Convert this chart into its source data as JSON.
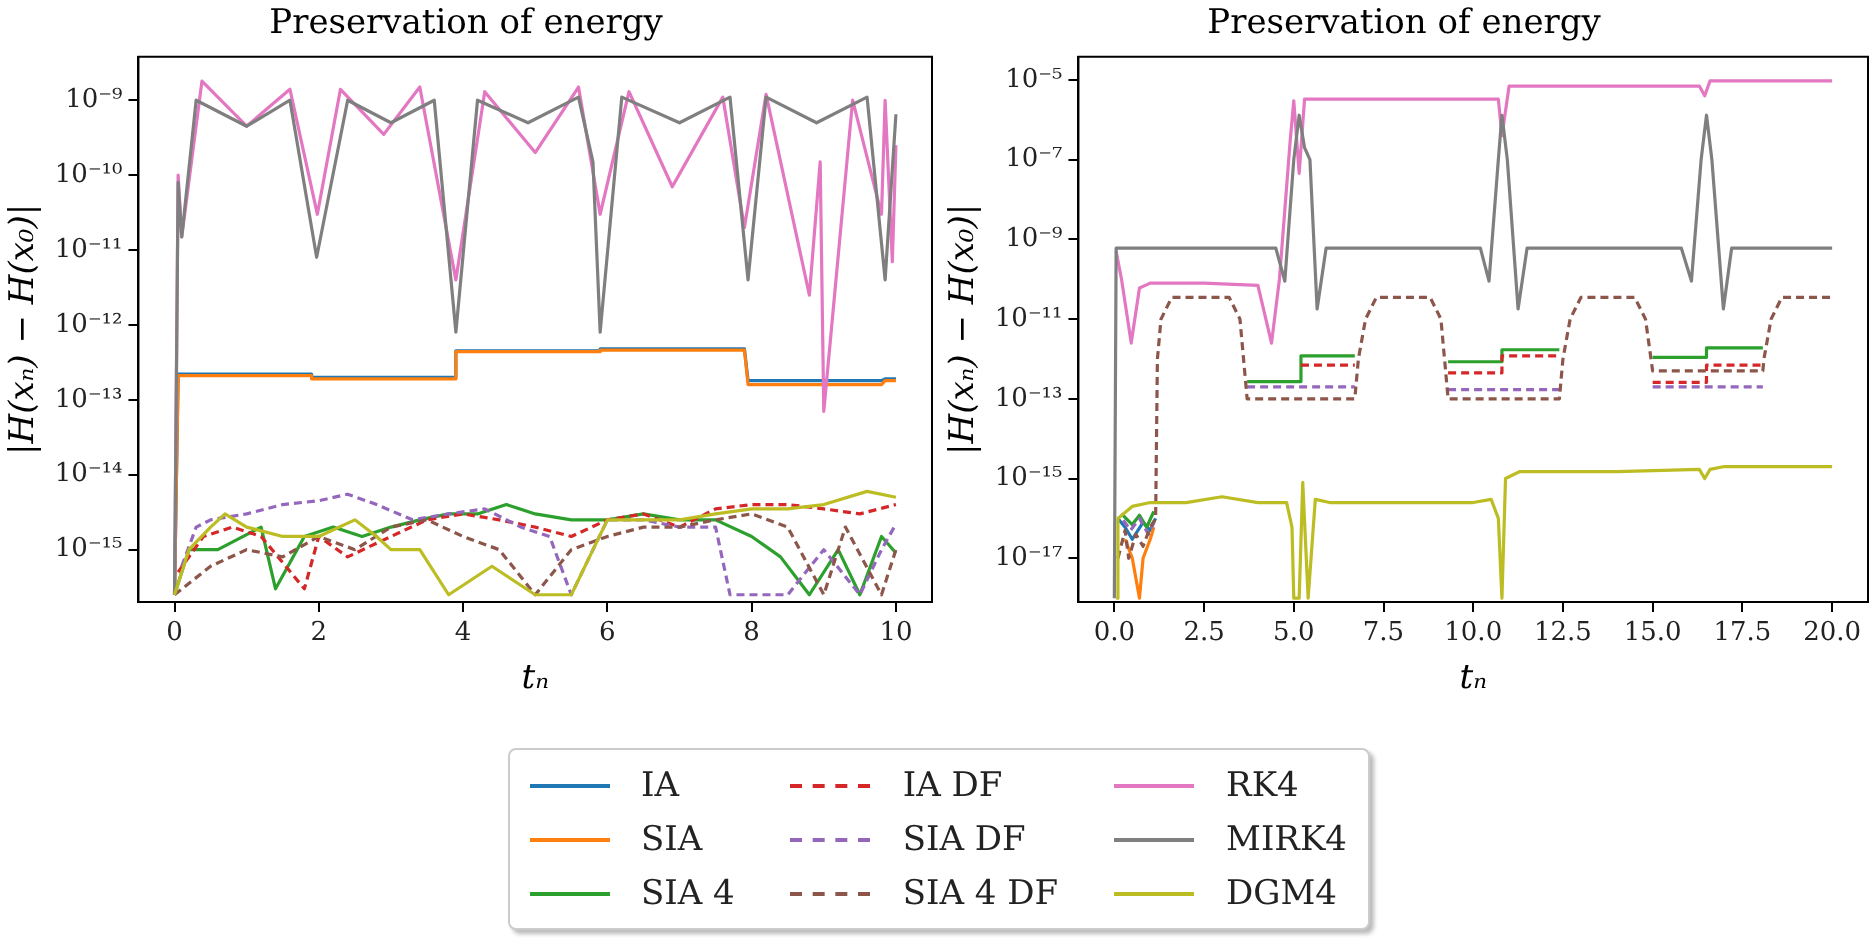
{
  "chart_data": [
    {
      "type": "line",
      "title": "Preservation of energy",
      "xlabel": "tₙ",
      "ylabel": "|H(xₙ) − H(x₀)|",
      "log": "y",
      "grid": false,
      "legend": "bottom",
      "xlim": [
        -0.5,
        10.5
      ],
      "xticks": [
        0,
        2,
        4,
        6,
        8,
        10
      ],
      "ylim": [
        2e-16,
        3.8e-09
      ],
      "yticks": [
        {
          "value": 1e-15,
          "label": "10⁻¹⁵"
        },
        {
          "value": 1e-14,
          "label": "10⁻¹⁴"
        },
        {
          "value": 1e-13,
          "label": "10⁻¹³"
        },
        {
          "value": 1e-12,
          "label": "10⁻¹²"
        },
        {
          "value": 1e-11,
          "label": "10⁻¹¹"
        },
        {
          "value": 1e-10,
          "label": "10⁻¹⁰"
        },
        {
          "value": 1e-09,
          "label": "10⁻⁹"
        }
      ],
      "series": [
        {
          "name": "IA",
          "color": "#1f77b4",
          "line_style": "solid",
          "x": [
            0,
            0.05,
            1.9,
            1.9,
            3.9,
            3.9,
            5.9,
            5.9,
            7.9,
            7.95,
            9.8,
            9.85,
            10
          ],
          "values": [
            2.5e-16,
            2.2e-13,
            2.2e-13,
            2e-13,
            2e-13,
            4.5e-13,
            4.5e-13,
            4.8e-13,
            4.8e-13,
            1.8e-13,
            1.8e-13,
            1.9e-13,
            1.9e-13
          ]
        },
        {
          "name": "SIA",
          "color": "#ff7f0e",
          "line_style": "solid",
          "x": [
            0,
            0.05,
            1.9,
            1.9,
            3.9,
            3.9,
            5.9,
            5.9,
            7.9,
            7.95,
            9.8,
            9.85,
            10
          ],
          "values": [
            2.5e-16,
            2.1e-13,
            2.1e-13,
            1.9e-13,
            1.9e-13,
            4.4e-13,
            4.4e-13,
            4.6e-13,
            4.6e-13,
            1.6e-13,
            1.6e-13,
            1.8e-13,
            1.8e-13
          ]
        },
        {
          "name": "SIA 4",
          "color": "#2ca02c",
          "line_style": "solid",
          "x": [
            0,
            0.2,
            0.6,
            1.2,
            1.4,
            1.8,
            2.2,
            2.6,
            3,
            3.4,
            3.8,
            4.2,
            4.6,
            5,
            5.5,
            6,
            6.5,
            7,
            7.5,
            8,
            8.4,
            8.8,
            9.2,
            9.5,
            9.8,
            10
          ],
          "values": [
            2.5e-16,
            1e-15,
            1e-15,
            2e-15,
            3e-16,
            1.5e-15,
            2e-15,
            1.5e-15,
            2e-15,
            2.5e-15,
            3e-15,
            3e-15,
            4e-15,
            3e-15,
            2.5e-15,
            2.5e-15,
            3e-15,
            2.5e-15,
            2.5e-15,
            1.5e-15,
            8e-16,
            2.5e-16,
            1e-15,
            2.5e-16,
            1.5e-15,
            9e-16
          ]
        },
        {
          "name": "IA DF",
          "color": "#d62728",
          "line_style": "dashed",
          "x": [
            0.05,
            0.4,
            0.8,
            1.2,
            1.8,
            2,
            2.4,
            3,
            3.5,
            4,
            4.5,
            5,
            5.5,
            6,
            6.5,
            7,
            7.5,
            8,
            8.5,
            9,
            9.5,
            10
          ],
          "values": [
            5e-16,
            1.5e-15,
            2e-15,
            1.5e-15,
            3e-16,
            1.5e-15,
            8e-16,
            1.5e-15,
            2.5e-15,
            3e-15,
            2.5e-15,
            2e-15,
            1.5e-15,
            2.5e-15,
            3e-15,
            2e-15,
            3.5e-15,
            4e-15,
            4e-15,
            3.5e-15,
            3e-15,
            4e-15
          ]
        },
        {
          "name": "SIA DF",
          "color": "#9467bd",
          "line_style": "dashed",
          "x": [
            0.1,
            0.3,
            0.5,
            1,
            1.5,
            2,
            2.4,
            2.8,
            3.3,
            3.8,
            4.3,
            4.8,
            5.2,
            5.5,
            6,
            6.5,
            7,
            7.5,
            7.7,
            8.5,
            9,
            9.5,
            9.8,
            10
          ],
          "values": [
            6e-16,
            2e-15,
            2.5e-15,
            3e-15,
            4e-15,
            4.5e-15,
            5.5e-15,
            4e-15,
            2.5e-15,
            3e-15,
            3.5e-15,
            2e-15,
            1.5e-15,
            2.5e-16,
            2.5e-15,
            2.5e-15,
            2e-15,
            2e-15,
            2.5e-16,
            2.5e-16,
            1e-15,
            2.5e-16,
            1e-15,
            2.2e-15
          ]
        },
        {
          "name": "SIA 4 DF",
          "color": "#8c564b",
          "line_style": "dashed",
          "x": [
            0,
            0.5,
            1,
            1.5,
            2,
            2.5,
            3,
            3.5,
            4,
            4.5,
            5,
            5.5,
            6,
            6.5,
            7,
            7.5,
            8,
            8.5,
            9,
            9.3,
            9.8,
            10
          ],
          "values": [
            2.5e-16,
            6e-16,
            1e-15,
            8e-16,
            1.5e-15,
            1e-15,
            2e-15,
            2.5e-15,
            1.5e-15,
            1e-15,
            2.5e-16,
            1e-15,
            1.5e-15,
            2e-15,
            2e-15,
            2.5e-15,
            3e-15,
            2e-15,
            2.5e-16,
            2e-15,
            2.5e-16,
            1e-15
          ]
        },
        {
          "name": "RK4",
          "color": "#e377c2",
          "line_style": "solid",
          "x": [
            0,
            0.05,
            0.1,
            0.38,
            1,
            1.6,
            1.98,
            2.3,
            2.9,
            3.4,
            3.9,
            4.3,
            5,
            5.6,
            5.9,
            6.3,
            6.9,
            7.6,
            7.9,
            8.2,
            8.8,
            8.95,
            9,
            9.4,
            9.8,
            9.85,
            9.95,
            10
          ],
          "values": [
            2.5e-16,
            1e-10,
            1.5e-11,
            1.8e-09,
            4.5e-10,
            1.4e-09,
            3e-11,
            1.4e-09,
            3.5e-10,
            1.5e-09,
            4e-12,
            1.3e-09,
            2e-10,
            1.5e-09,
            3e-11,
            1.3e-09,
            7e-11,
            1.1e-09,
            2e-11,
            1.2e-09,
            2.5e-12,
            1.5e-10,
            7e-14,
            1e-09,
            3e-11,
            1e-09,
            7e-12,
            2.5e-10
          ]
        },
        {
          "name": "MIRK4",
          "color": "#7f7f7f",
          "line_style": "solid",
          "x": [
            0,
            0.05,
            0.1,
            0.3,
            1,
            1.6,
            1.97,
            2.4,
            3,
            3.6,
            3.9,
            4.2,
            4.9,
            5.6,
            5.8,
            5.9,
            6.2,
            7,
            7.7,
            7.95,
            8.2,
            8.9,
            9.6,
            9.85,
            10
          ],
          "values": [
            2.5e-16,
            8e-11,
            1.5e-11,
            1e-09,
            4.5e-10,
            1e-09,
            8e-12,
            1e-09,
            5e-10,
            1e-09,
            8e-13,
            1e-09,
            5e-10,
            1.1e-09,
            1.5e-10,
            8e-13,
            1.1e-09,
            5e-10,
            1.1e-09,
            4e-12,
            1.1e-09,
            5e-10,
            1.1e-09,
            4e-12,
            6.5e-10
          ]
        },
        {
          "name": "DGM4",
          "color": "#bcbd22",
          "line_style": "solid",
          "x": [
            0,
            0.2,
            0.5,
            0.7,
            1,
            1.5,
            2,
            2.5,
            2.8,
            3,
            3.4,
            3.8,
            4.4,
            5,
            5.5,
            6,
            7,
            7.5,
            8,
            8.5,
            9,
            9.6,
            10
          ],
          "values": [
            2.5e-16,
            1e-15,
            2e-15,
            3e-15,
            2e-15,
            1.5e-15,
            1.5e-15,
            2.5e-15,
            1.5e-15,
            1e-15,
            1e-15,
            2.5e-16,
            6e-16,
            2.5e-16,
            2.5e-16,
            2.5e-15,
            2.5e-15,
            3e-15,
            3.5e-15,
            3.5e-15,
            4e-15,
            6e-15,
            5e-15
          ]
        }
      ]
    },
    {
      "type": "line",
      "title": "Preservation of energy",
      "xlabel": "tₙ",
      "ylabel": "|H(xₙ) − H(x₀)|",
      "log": "y",
      "grid": false,
      "xlim": [
        -1,
        21
      ],
      "xticks": [
        {
          "value": 0,
          "label": "0.0"
        },
        2.5,
        {
          "value": 5,
          "label": "5.0"
        },
        7.5,
        {
          "value": 10,
          "label": "10.0"
        },
        12.5,
        {
          "value": 15,
          "label": "15.0"
        },
        17.5,
        {
          "value": 20,
          "label": "20.0"
        }
      ],
      "ylim": [
        8e-19,
        3.8e-05
      ],
      "yticks": [
        {
          "value": 1e-17,
          "label": "10⁻¹⁷"
        },
        {
          "value": 1e-15,
          "label": "10⁻¹⁵"
        },
        {
          "value": 1e-13,
          "label": "10⁻¹³"
        },
        {
          "value": 1e-11,
          "label": "10⁻¹¹"
        },
        {
          "value": 1e-09,
          "label": "10⁻⁹"
        },
        {
          "value": 1e-07,
          "label": "10⁻⁷"
        },
        {
          "value": 1e-05,
          "label": "10⁻⁵"
        }
      ],
      "series": [
        {
          "color": "#1f77b4",
          "line_style": "solid",
          "x": [
            0.1,
            0.3,
            0.5,
            0.8,
            1,
            1.15
          ],
          "values": [
            1e-16,
            6e-17,
            3e-17,
            8e-17,
            5e-17,
            1e-16
          ]
        },
        {
          "color": "#ff7f0e",
          "line_style": "solid",
          "x": [
            0.3,
            0.5,
            0.7,
            0.8,
            1,
            1.1
          ],
          "values": [
            3e-17,
            1e-17,
            1e-18,
            1e-17,
            3e-17,
            6e-17
          ]
        },
        {
          "color": "#2ca02c",
          "line_style": "solid",
          "x": [
            0.2,
            0.5,
            0.7,
            0.9,
            1.1,
            2,
            3.7,
            5.2,
            5.2,
            6.7,
            8,
            9.3,
            10.8,
            10.8,
            12.4,
            13,
            15,
            16.5,
            16.5,
            18.07
          ],
          "values": [
            1.3e-16,
            7e-17,
            1.2e-16,
            6e-17,
            1.5e-16,
            null,
            2.7e-13,
            2.7e-13,
            1.2e-12,
            1.2e-12,
            null,
            8.5e-13,
            8.5e-13,
            1.7e-12,
            1.7e-12,
            null,
            1.1e-12,
            1.1e-12,
            1.9e-12,
            1.9e-12
          ]
        },
        {
          "color": "#d62728",
          "line_style": "dashed",
          "x": [
            5.2,
            6.7,
            8,
            9.3,
            10.8,
            10.8,
            12.4,
            13,
            15,
            16.5,
            16.5,
            18.07
          ],
          "values": [
            7e-13,
            7e-13,
            null,
            4.5e-13,
            4.5e-13,
            1.2e-12,
            1.2e-12,
            null,
            2.6e-13,
            2.6e-13,
            7e-13,
            7e-13
          ]
        },
        {
          "color": "#9467bd",
          "line_style": "dashed",
          "x": [
            0.25,
            0.45,
            0.7,
            0.95,
            1.1,
            2,
            3.7,
            6.7,
            8,
            9.3,
            12.4,
            13,
            15,
            18.07
          ],
          "values": [
            9e-17,
            5e-17,
            1e-16,
            4e-17,
            8e-17,
            null,
            2e-13,
            2e-13,
            null,
            1.7e-13,
            1.7e-13,
            null,
            2e-13,
            2e-13
          ]
        },
        {
          "color": "#8c564b",
          "line_style": "dashed",
          "x": [
            0.1,
            0.3,
            0.4,
            0.6,
            0.8,
            1,
            1.15,
            1.2,
            1.3,
            1.6,
            3.2,
            3.5,
            3.7,
            6.7,
            6.8,
            7,
            7.3,
            8.8,
            9.1,
            9.3,
            12.4,
            12.5,
            12.7,
            13,
            14.5,
            14.8,
            15,
            18.07,
            18.1,
            18.3,
            18.6,
            20
          ],
          "values": [
            1e-17,
            5e-17,
            1e-17,
            4e-17,
            2e-17,
            6e-17,
            1e-16,
            1e-12,
            1e-11,
            3.5e-11,
            3.5e-11,
            1e-11,
            1e-13,
            1e-13,
            1e-12,
            1e-11,
            3.5e-11,
            3.5e-11,
            1e-11,
            1e-13,
            1e-13,
            1e-12,
            1e-11,
            3.5e-11,
            3.5e-11,
            1e-11,
            5e-13,
            5e-13,
            1e-12,
            1e-11,
            3.5e-11,
            3.5e-11
          ]
        },
        {
          "color": "#e377c2",
          "line_style": "solid",
          "x": [
            0.05,
            0.2,
            0.47,
            0.7,
            1,
            2.5,
            4,
            4.38,
            4.6,
            4.9,
            5,
            5.15,
            5.3,
            10.7,
            10.8,
            11,
            16.3,
            16.45,
            16.6,
            20
          ],
          "values": [
            5e-10,
            1e-10,
            2.5e-12,
            6e-11,
            8e-11,
            8e-11,
            7e-11,
            2.5e-12,
            1e-10,
            3e-07,
            3e-06,
            4.5e-08,
            3.3e-06,
            3.3e-06,
            4e-07,
            7e-06,
            7e-06,
            4e-06,
            9.5e-06,
            9.5e-06
          ]
        },
        {
          "color": "#7f7f7f",
          "line_style": "solid",
          "x": [
            0,
            0.05,
            0.2,
            4.5,
            4.75,
            5.0,
            5.15,
            5.3,
            5.45,
            5.65,
            5.9,
            10.2,
            10.44,
            10.7,
            10.8,
            10.95,
            11.25,
            11.5,
            15.8,
            16.08,
            16.35,
            16.5,
            16.65,
            16.97,
            17.2,
            20
          ],
          "values": [
            1e-18,
            6e-10,
            6e-10,
            6e-10,
            9e-11,
            1e-07,
            1.3e-06,
            2e-07,
            1e-07,
            1.8e-11,
            6e-10,
            6e-10,
            9e-11,
            1e-07,
            1.3e-06,
            1e-07,
            1.8e-11,
            6e-10,
            6e-10,
            9e-11,
            1e-07,
            1.3e-06,
            1e-07,
            1.8e-11,
            6e-10,
            6e-10
          ]
        },
        {
          "color": "#bcbd22",
          "line_style": "solid",
          "x": [
            0.05,
            0.1,
            0.5,
            1,
            2,
            3,
            4,
            4.8,
            4.95,
            5,
            5.15,
            5.25,
            5.4,
            5.6,
            6,
            8,
            10,
            10.5,
            10.7,
            10.8,
            10.9,
            11.3,
            14,
            16.3,
            16.45,
            16.6,
            17,
            20
          ],
          "values": [
            1e-18,
            1e-16,
            2e-16,
            2.5e-16,
            2.5e-16,
            3.5e-16,
            2.5e-16,
            2.5e-16,
            6e-17,
            1e-18,
            1e-18,
            8e-16,
            1e-18,
            3e-16,
            2.5e-16,
            2.5e-16,
            2.5e-16,
            3e-16,
            1e-16,
            1e-18,
            1e-15,
            1.5e-15,
            1.5e-15,
            1.7e-15,
            1e-15,
            1.7e-15,
            2e-15,
            2e-15
          ]
        }
      ]
    }
  ]
}
